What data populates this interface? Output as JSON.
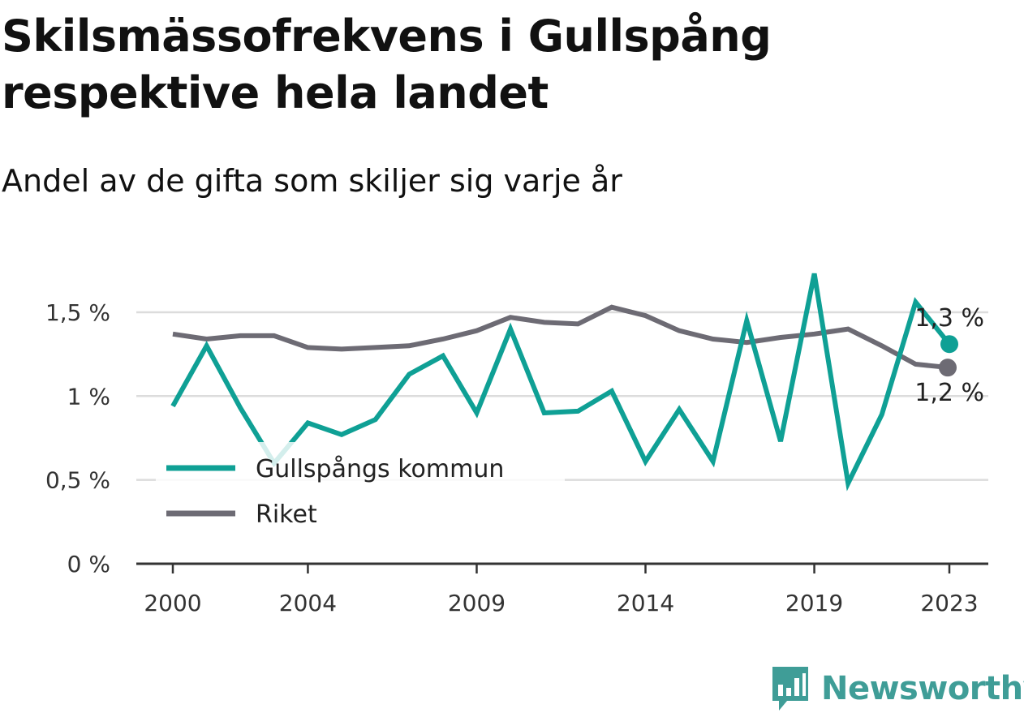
{
  "title": "Skilsmässofrekvens i Gullspång respektive hela landet",
  "subtitle": "Andel av de gifta som skiljer sig varje år",
  "brand": {
    "name": "Newsworthy",
    "icon": "bar-chart-speech-bubble-icon",
    "color": "#3f9d97"
  },
  "colors": {
    "gullspang": "#0fa095",
    "riket": "#6d6b74",
    "grid": "#dcdcdc",
    "axis": "#333333"
  },
  "end_labels": {
    "gullspang": "1,3 %",
    "riket": "1,2 %"
  },
  "chart_data": {
    "type": "line",
    "title": "Skilsmässofrekvens i Gullspång respektive hela landet",
    "subtitle": "Andel av de gifta som skiljer sig varje år",
    "xlabel": "",
    "ylabel": "",
    "x": [
      2000,
      2001,
      2002,
      2003,
      2004,
      2005,
      2006,
      2007,
      2008,
      2009,
      2010,
      2011,
      2012,
      2013,
      2014,
      2015,
      2016,
      2017,
      2018,
      2019,
      2020,
      2021,
      2022,
      2023
    ],
    "x_ticks": [
      2000,
      2004,
      2009,
      2014,
      2019,
      2023
    ],
    "x_tick_labels": [
      "2000",
      "2004",
      "2009",
      "2014",
      "2019",
      "2023"
    ],
    "ylim": [
      0,
      1.5
    ],
    "y_ticks": [
      0,
      0.5,
      1,
      1.5
    ],
    "y_tick_labels": [
      "0 %",
      "0,5 %",
      "1 %",
      "1,5 %"
    ],
    "grid": true,
    "legend": "bottom-left",
    "series": [
      {
        "name": "Gullspångs kommun",
        "color": "#0fa095",
        "values": [
          0.94,
          1.3,
          0.93,
          0.6,
          0.84,
          0.77,
          0.86,
          1.13,
          1.24,
          0.9,
          1.4,
          0.9,
          0.91,
          1.03,
          0.61,
          0.92,
          0.61,
          1.45,
          0.73,
          1.73,
          0.48,
          0.89,
          1.56,
          1.31
        ],
        "end_label": "1,3 %"
      },
      {
        "name": "Riket",
        "color": "#6d6b74",
        "values": [
          1.37,
          1.34,
          1.36,
          1.36,
          1.29,
          1.28,
          1.29,
          1.3,
          1.34,
          1.39,
          1.47,
          1.44,
          1.43,
          1.53,
          1.48,
          1.39,
          1.34,
          1.32,
          1.35,
          1.37,
          1.4,
          1.3,
          1.19,
          1.17
        ],
        "end_label": "1,2 %"
      }
    ]
  }
}
